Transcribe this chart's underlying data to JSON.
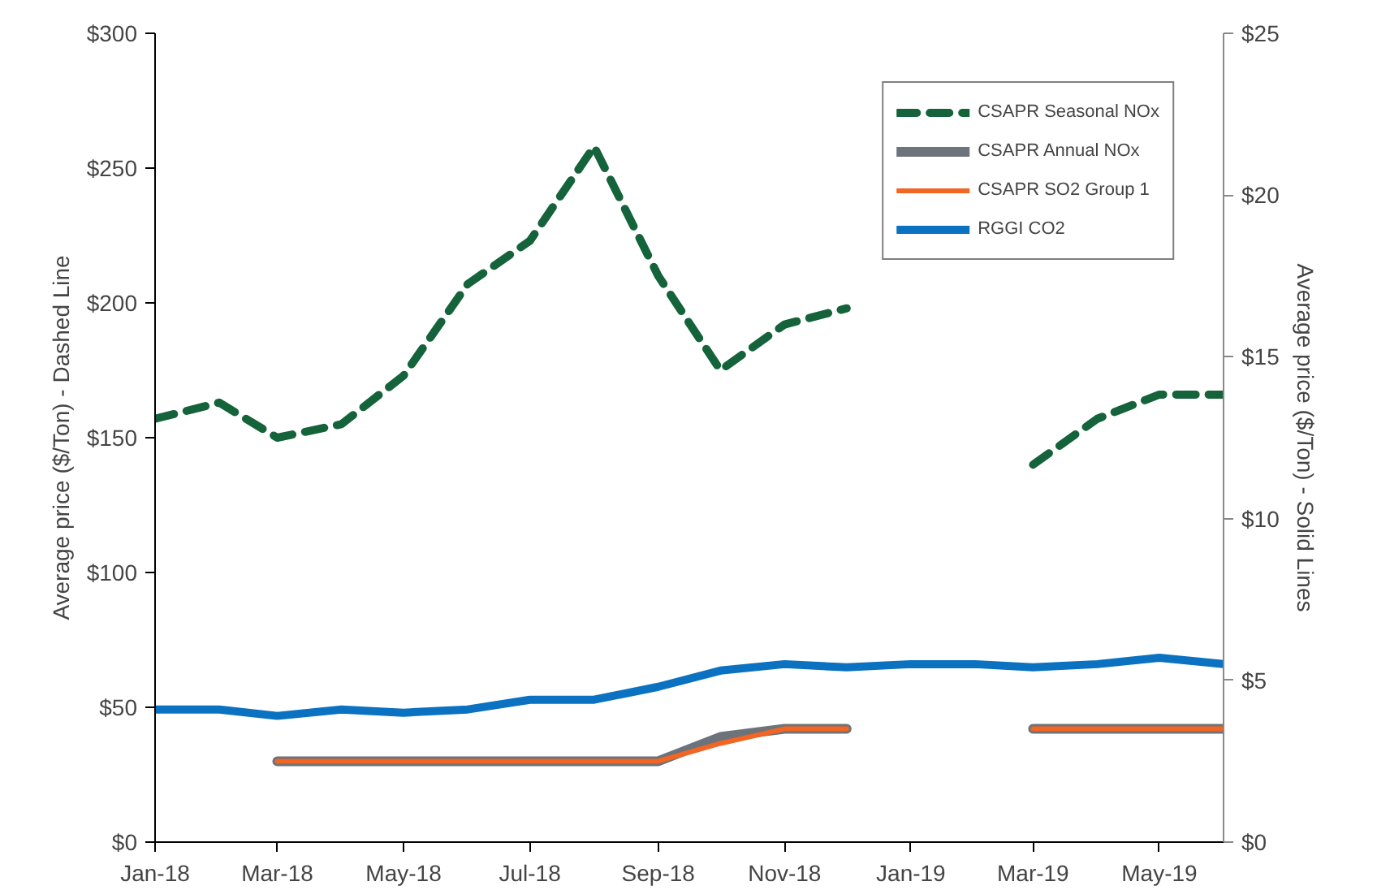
{
  "chart_data": {
    "type": "line",
    "ylabel": "Average price ($/Ton) - Dashed Line",
    "y2label": "Average price ($/Ton) - Solid Lines",
    "x": [
      "2018-01",
      "2018-02",
      "2018-03",
      "2018-04",
      "2018-05",
      "2018-06",
      "2018-07",
      "2018-08",
      "2018-09",
      "2018-10",
      "2018-11",
      "2018-12",
      "2019-01",
      "2019-02",
      "2019-03",
      "2019-04",
      "2019-05",
      "2019-06"
    ],
    "xlim": [
      "2018-01",
      "2019-06"
    ],
    "xticks": [
      {
        "value": "2018-01",
        "label": "Jan-18"
      },
      {
        "value": "2018-03",
        "label": "Mar-18"
      },
      {
        "value": "2018-05",
        "label": "May-18"
      },
      {
        "value": "2018-07",
        "label": "Jul-18"
      },
      {
        "value": "2018-09",
        "label": "Sep-18"
      },
      {
        "value": "2018-11",
        "label": "Nov-18"
      },
      {
        "value": "2019-01",
        "label": "Jan-19"
      },
      {
        "value": "2019-03",
        "label": "Mar-19"
      },
      {
        "value": "2019-05",
        "label": "May-19"
      }
    ],
    "ylim": [
      0,
      300
    ],
    "yticks": [
      {
        "value": 0,
        "label": "$0"
      },
      {
        "value": 50,
        "label": "$50"
      },
      {
        "value": 100,
        "label": "$100"
      },
      {
        "value": 150,
        "label": "$150"
      },
      {
        "value": 200,
        "label": "$200"
      },
      {
        "value": 250,
        "label": "$250"
      },
      {
        "value": 300,
        "label": "$300"
      }
    ],
    "y2lim": [
      0,
      25
    ],
    "y2ticks": [
      {
        "value": 0,
        "label": "$0"
      },
      {
        "value": 5,
        "label": "$5"
      },
      {
        "value": 10,
        "label": "$10"
      },
      {
        "value": 15,
        "label": "$15"
      },
      {
        "value": 20,
        "label": "$20"
      },
      {
        "value": 25,
        "label": "$25"
      }
    ],
    "series": [
      {
        "name": "CSAPR Seasonal NOx",
        "color": "#15633a",
        "line_style": "dashed",
        "values": [
          157,
          163,
          150,
          155,
          173,
          207,
          223,
          258,
          210,
          175,
          192,
          198,
          null,
          null,
          140,
          157,
          166,
          166
        ]
      },
      {
        "name": "CSAPR Annual NOx",
        "color": "#6d737a",
        "axis": "y2",
        "line_style": "solid",
        "values": [
          null,
          null,
          2.5,
          2.5,
          2.5,
          2.5,
          2.5,
          2.5,
          2.5,
          3.25,
          3.5,
          3.5,
          null,
          null,
          3.5,
          3.5,
          3.5,
          3.5
        ]
      },
      {
        "name": "CSAPR SO2 Group 1",
        "color": "#f26522",
        "axis": "y2",
        "line_style": "solid",
        "values": [
          null,
          null,
          2.5,
          2.5,
          2.5,
          2.5,
          2.5,
          2.5,
          2.5,
          3.05,
          3.5,
          3.5,
          null,
          null,
          3.5,
          3.5,
          3.5,
          3.5
        ]
      },
      {
        "name": "RGGI CO2",
        "color": "#0a72c0",
        "axis": "y2",
        "line_style": "solid",
        "values": [
          4.1,
          4.1,
          3.9,
          4.1,
          4.0,
          4.1,
          4.4,
          4.4,
          4.8,
          5.3,
          5.5,
          5.4,
          5.5,
          5.5,
          5.4,
          5.5,
          5.7,
          5.5
        ]
      }
    ],
    "grid": false,
    "legend": "top right"
  }
}
